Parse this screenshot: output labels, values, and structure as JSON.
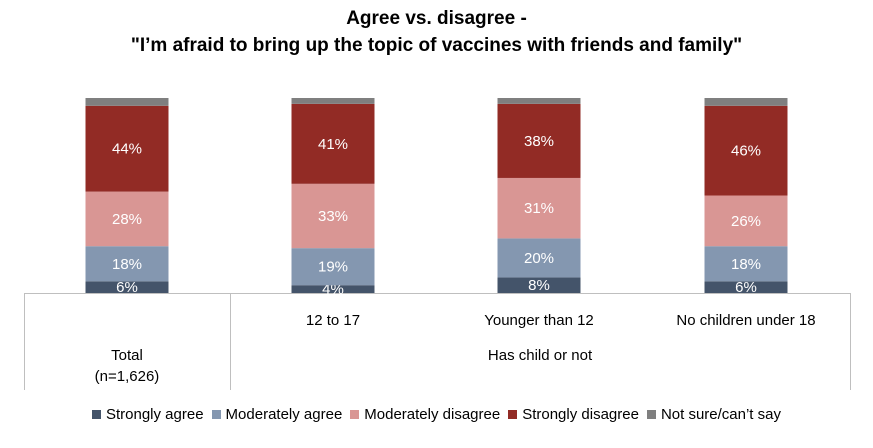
{
  "chart_data": {
    "type": "bar",
    "stacked": true,
    "percent": true,
    "title": "Agree vs. disagree -",
    "subtitle": "\"I’m afraid to bring up the topic of vaccines with friends and family\"",
    "categories": [
      "Total\n(n=1,626)",
      "12 to 17",
      "Younger than 12",
      "No children under 18"
    ],
    "category_groups": [
      {
        "label": "Total\n(n=1,626)",
        "members": [
          "Total\n(n=1,626)"
        ]
      },
      {
        "label": "Has child or not",
        "members": [
          "12 to 17",
          "Younger than 12",
          "No children under 18"
        ]
      }
    ],
    "series": [
      {
        "name": "Strongly agree",
        "color": "#44546a",
        "values": [
          6,
          4,
          8,
          6
        ],
        "labels": [
          "6%",
          "4%",
          "8%",
          "6%"
        ]
      },
      {
        "name": "Moderately agree",
        "color": "#8497b0",
        "values": [
          18,
          19,
          20,
          18
        ],
        "labels": [
          "18%",
          "19%",
          "20%",
          "18%"
        ]
      },
      {
        "name": "Moderately disagree",
        "color": "#d99694",
        "values": [
          28,
          33,
          31,
          26
        ],
        "labels": [
          "28%",
          "33%",
          "31%",
          "26%"
        ]
      },
      {
        "name": "Strongly disagree",
        "color": "#922b25",
        "values": [
          44,
          41,
          38,
          46
        ],
        "labels": [
          "44%",
          "41%",
          "38%",
          "46%"
        ]
      },
      {
        "name": "Not sure/can’t say",
        "color": "#7f7f7f",
        "values": [
          4,
          3,
          3,
          4
        ],
        "labels": [
          "",
          "",
          "",
          ""
        ]
      }
    ],
    "ylim": [
      0,
      100
    ],
    "legend_position": "bottom"
  }
}
